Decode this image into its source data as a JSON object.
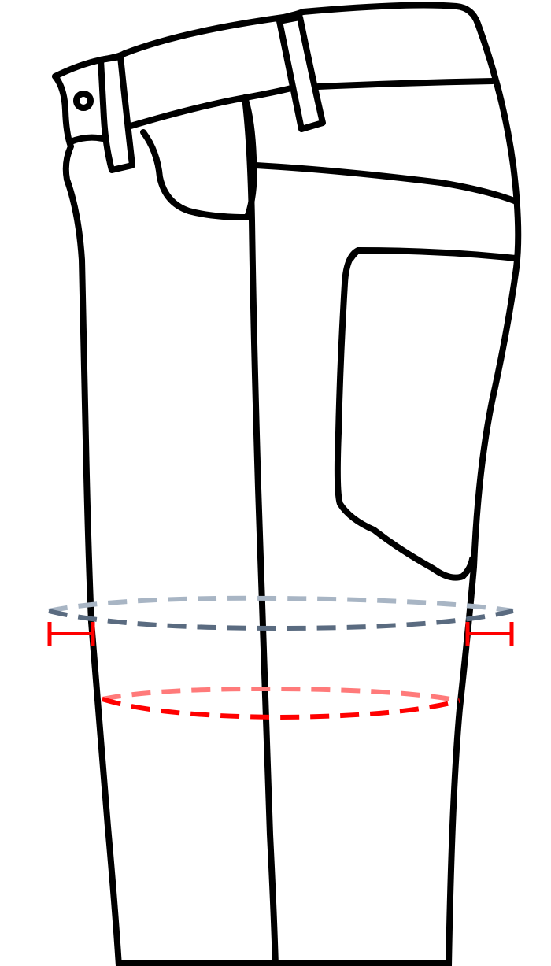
{
  "diagram": {
    "subject": "jeans-side-view",
    "colors": {
      "outline": "#000000",
      "background": "#ffffff",
      "measure_line_upper": "#5a6b80",
      "measure_line_upper_back": "#a8b5c4",
      "measure_line_lower": "#ff0000",
      "measure_line_lower_back": "#ff7a7a",
      "width_marker": "#ff0000"
    },
    "parts": [
      {
        "name": "waistband",
        "icon": "waistband-shape"
      },
      {
        "name": "belt-loop-front",
        "icon": "belt-loop-shape"
      },
      {
        "name": "belt-loop-side",
        "icon": "belt-loop-shape"
      },
      {
        "name": "button",
        "icon": "button-circle"
      },
      {
        "name": "front-pocket",
        "icon": "pocket-curve"
      },
      {
        "name": "yoke",
        "icon": "yoke-line"
      },
      {
        "name": "back-pocket",
        "icon": "pocket-shape"
      },
      {
        "name": "outseam",
        "icon": "seam-line"
      },
      {
        "name": "thigh-measurement",
        "icon": "dashed-ellipse"
      },
      {
        "name": "knee-measurement",
        "icon": "dashed-ellipse"
      }
    ]
  }
}
